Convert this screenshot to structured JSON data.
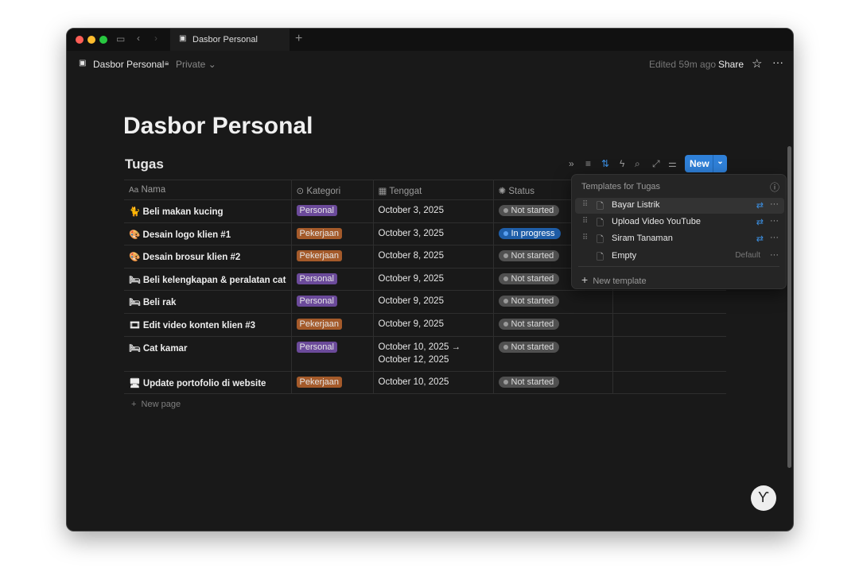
{
  "window": {
    "tab_title": "Dasbor Personal"
  },
  "header": {
    "breadcrumb": "Dasbor Personal",
    "privacy": "Private",
    "edited": "Edited 59m ago",
    "share": "Share"
  },
  "page": {
    "title": "Dasbor Personal"
  },
  "database": {
    "title": "Tugas",
    "new_label": "New",
    "columns": [
      "Nama",
      "Kategori",
      "Tenggat",
      "Status"
    ],
    "rows": [
      {
        "icon": "🐈",
        "name": "Beli makan kucing",
        "kategori": "Personal",
        "tenggat": "October 3, 2025",
        "tenggat2": "",
        "status": "Not started"
      },
      {
        "icon": "🎨",
        "name": "Desain logo klien #1",
        "kategori": "Pekerjaan",
        "tenggat": "October 3, 2025",
        "tenggat2": "",
        "status": "In progress"
      },
      {
        "icon": "🎨",
        "name": "Desain brosur klien #2",
        "kategori": "Pekerjaan",
        "tenggat": "October 8, 2025",
        "tenggat2": "",
        "status": "Not started"
      },
      {
        "icon": "🛏",
        "name": "Beli kelengkapan & peralatan cat",
        "kategori": "Personal",
        "tenggat": "October 9, 2025",
        "tenggat2": "",
        "status": "Not started"
      },
      {
        "icon": "🛏",
        "name": "Beli rak",
        "kategori": "Personal",
        "tenggat": "October 9, 2025",
        "tenggat2": "",
        "status": "Not started"
      },
      {
        "icon": "🎞",
        "name": "Edit video konten klien #3",
        "kategori": "Pekerjaan",
        "tenggat": "October 9, 2025",
        "tenggat2": "",
        "status": "Not started"
      },
      {
        "icon": "🛏",
        "name": "Cat kamar",
        "kategori": "Personal",
        "tenggat": "October 10, 2025 →",
        "tenggat2": "October 12, 2025",
        "status": "Not started"
      },
      {
        "icon": "🖥",
        "name": "Update portofolio di website",
        "kategori": "Pekerjaan",
        "tenggat": "October 10, 2025",
        "tenggat2": "",
        "status": "Not started"
      }
    ],
    "new_page": "New page"
  },
  "templates": {
    "title": "Templates for Tugas",
    "items": [
      "Bayar Listrik",
      "Upload Video YouTube",
      "Siram Tanaman",
      "Empty"
    ],
    "default_label": "Default",
    "new_template": "New template"
  },
  "colors": {
    "personal": "#6b4a9a",
    "pekerjaan": "#a45a2a",
    "accent": "#2f80d8"
  }
}
